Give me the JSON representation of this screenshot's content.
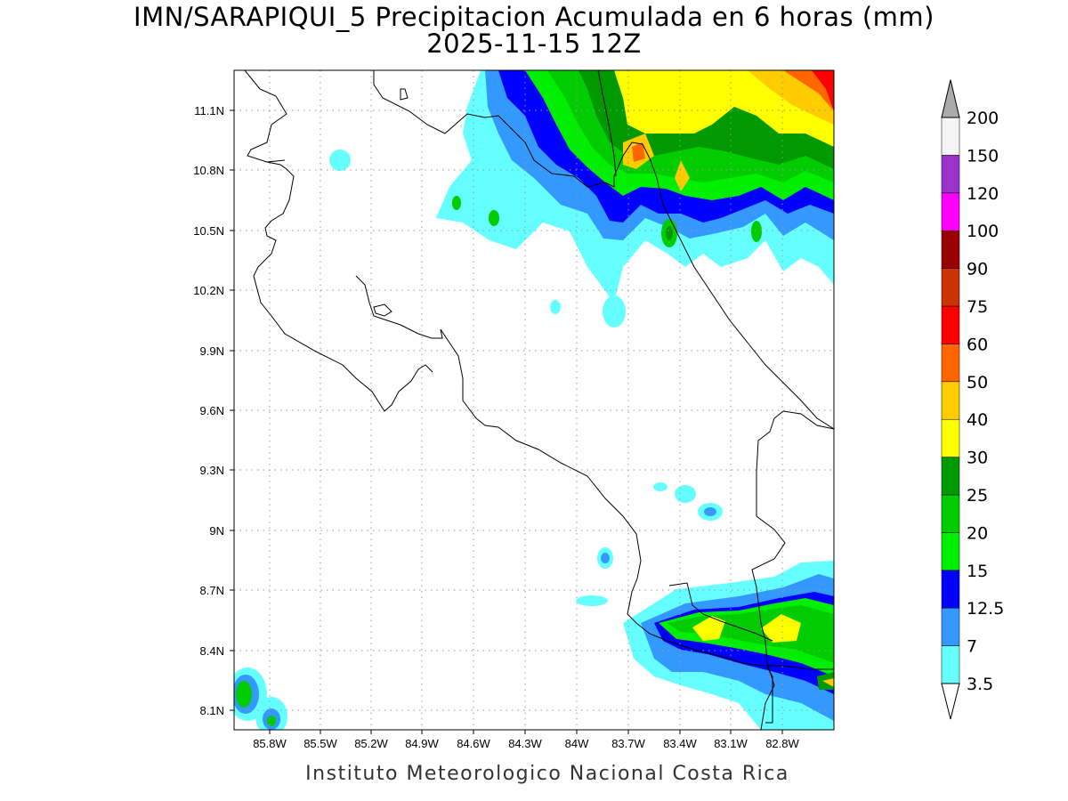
{
  "title": {
    "line1": "IMN/SARAPIQUI_5 Precipitacion Acumulada en 6 horas (mm)",
    "line2": "2025-11-15 12Z"
  },
  "footer": "Instituto Meteorologico Nacional Costa Rica",
  "map": {
    "lon_labels": [
      "85.8W",
      "85.5W",
      "85.2W",
      "84.9W",
      "84.6W",
      "84.3W",
      "84W",
      "83.7W",
      "83.4W",
      "83.1W",
      "82.8W"
    ],
    "lat_labels": [
      "11.1N",
      "10.8N",
      "10.5N",
      "10.2N",
      "9.9N",
      "9.6N",
      "9.3N",
      "9N",
      "8.7N",
      "8.4N",
      "8.1N"
    ],
    "grid": "dotted"
  },
  "colorbar": {
    "levels": [
      "3.5",
      "7",
      "12.5",
      "15",
      "20",
      "25",
      "30",
      "40",
      "50",
      "60",
      "75",
      "90",
      "100",
      "120",
      "150",
      "200"
    ],
    "colors": [
      "#66ffff",
      "#3399ff",
      "#0000ff",
      "#00ee00",
      "#00cc00",
      "#009900",
      "#ffff00",
      "#ffcc00",
      "#ff6600",
      "#ff0000",
      "#cc3300",
      "#990000",
      "#ff00ff",
      "#9933cc",
      "#f5f5f5",
      "#aaaaaa"
    ]
  }
}
